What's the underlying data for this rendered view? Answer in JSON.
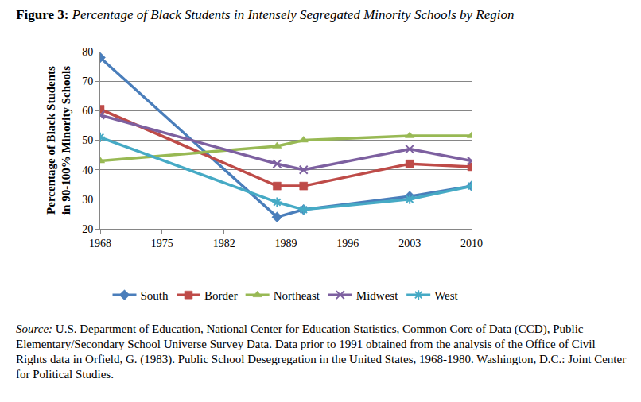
{
  "chart_data": {
    "type": "line",
    "title": "Figure 3: Percentage of Black Students in Intensely Segregated Minority Schools by Region",
    "y_label": "Percentage of Black Students in 90-100% Minority Schools",
    "x": [
      1968,
      1988,
      1991,
      2003,
      2010
    ],
    "series": [
      {
        "name": "South",
        "color": "#4a7ebb",
        "marker": "diamond",
        "values": [
          78,
          24,
          26.5,
          31,
          34.5
        ]
      },
      {
        "name": "Border",
        "color": "#be4b48",
        "marker": "square",
        "values": [
          60.5,
          34.5,
          34.5,
          42,
          41
        ]
      },
      {
        "name": "Northeast",
        "color": "#98b954",
        "marker": "triangle-up",
        "values": [
          43,
          48,
          50,
          51.5,
          51.5
        ]
      },
      {
        "name": "Midwest",
        "color": "#7d60a0",
        "marker": "x",
        "values": [
          58.5,
          42,
          40,
          47,
          43
        ]
      },
      {
        "name": "West",
        "color": "#46aac5",
        "marker": "asterisk",
        "values": [
          51,
          29,
          26.5,
          30,
          34.5
        ]
      }
    ],
    "xlim": [
      1968,
      2010
    ],
    "xticks": [
      1968,
      1975,
      1982,
      1989,
      1996,
      2003,
      2010
    ],
    "ylim": [
      20,
      80
    ],
    "yticks": [
      20,
      30,
      40,
      50,
      60,
      70,
      80
    ],
    "grid": true,
    "legend": "bottom",
    "source": "Source: U.S. Department of Education, National Center for Education Statistics, Common Core of Data (CCD), Public Elementary/Secondary School Universe Survey Data. Data prior to 1991 obtained from the analysis of the Office of Civil Rights data in Orfield, G. (1983). Public School Desegregation in the United States, 1968-1980. Washington, D.C.: Joint Center for Political Studies."
  }
}
